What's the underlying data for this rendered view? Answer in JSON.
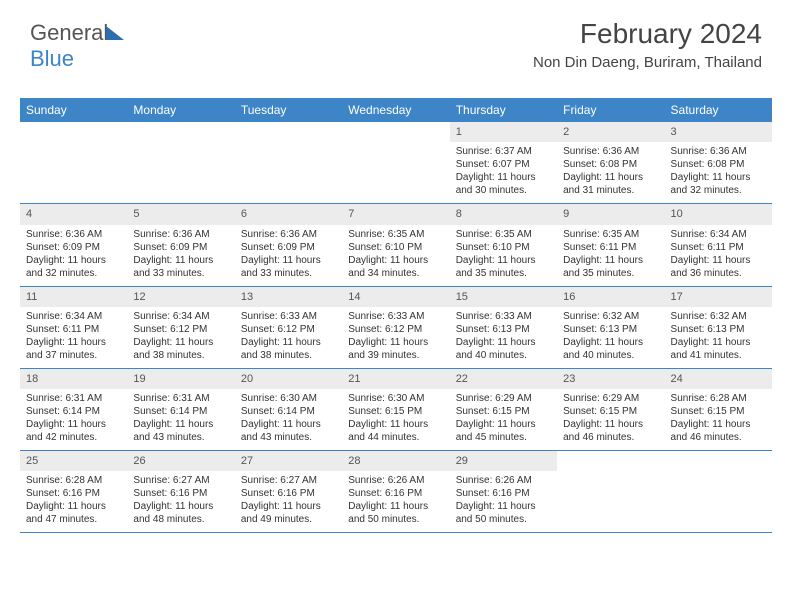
{
  "logo": {
    "text1": "General",
    "text2": "Blue"
  },
  "header": {
    "month": "February 2024",
    "location": "Non Din Daeng, Buriram, Thailand"
  },
  "colors": {
    "brand": "#3d85c6",
    "daynum_bg": "#ececec",
    "text": "#333333"
  },
  "weekdays": [
    "Sunday",
    "Monday",
    "Tuesday",
    "Wednesday",
    "Thursday",
    "Friday",
    "Saturday"
  ],
  "calendar": {
    "type": "table",
    "weeks": [
      [
        {
          "n": "",
          "sr": "",
          "ss": "",
          "dl": ""
        },
        {
          "n": "",
          "sr": "",
          "ss": "",
          "dl": ""
        },
        {
          "n": "",
          "sr": "",
          "ss": "",
          "dl": ""
        },
        {
          "n": "",
          "sr": "",
          "ss": "",
          "dl": ""
        },
        {
          "n": "1",
          "sr": "Sunrise: 6:37 AM",
          "ss": "Sunset: 6:07 PM",
          "dl": "Daylight: 11 hours and 30 minutes."
        },
        {
          "n": "2",
          "sr": "Sunrise: 6:36 AM",
          "ss": "Sunset: 6:08 PM",
          "dl": "Daylight: 11 hours and 31 minutes."
        },
        {
          "n": "3",
          "sr": "Sunrise: 6:36 AM",
          "ss": "Sunset: 6:08 PM",
          "dl": "Daylight: 11 hours and 32 minutes."
        }
      ],
      [
        {
          "n": "4",
          "sr": "Sunrise: 6:36 AM",
          "ss": "Sunset: 6:09 PM",
          "dl": "Daylight: 11 hours and 32 minutes."
        },
        {
          "n": "5",
          "sr": "Sunrise: 6:36 AM",
          "ss": "Sunset: 6:09 PM",
          "dl": "Daylight: 11 hours and 33 minutes."
        },
        {
          "n": "6",
          "sr": "Sunrise: 6:36 AM",
          "ss": "Sunset: 6:09 PM",
          "dl": "Daylight: 11 hours and 33 minutes."
        },
        {
          "n": "7",
          "sr": "Sunrise: 6:35 AM",
          "ss": "Sunset: 6:10 PM",
          "dl": "Daylight: 11 hours and 34 minutes."
        },
        {
          "n": "8",
          "sr": "Sunrise: 6:35 AM",
          "ss": "Sunset: 6:10 PM",
          "dl": "Daylight: 11 hours and 35 minutes."
        },
        {
          "n": "9",
          "sr": "Sunrise: 6:35 AM",
          "ss": "Sunset: 6:11 PM",
          "dl": "Daylight: 11 hours and 35 minutes."
        },
        {
          "n": "10",
          "sr": "Sunrise: 6:34 AM",
          "ss": "Sunset: 6:11 PM",
          "dl": "Daylight: 11 hours and 36 minutes."
        }
      ],
      [
        {
          "n": "11",
          "sr": "Sunrise: 6:34 AM",
          "ss": "Sunset: 6:11 PM",
          "dl": "Daylight: 11 hours and 37 minutes."
        },
        {
          "n": "12",
          "sr": "Sunrise: 6:34 AM",
          "ss": "Sunset: 6:12 PM",
          "dl": "Daylight: 11 hours and 38 minutes."
        },
        {
          "n": "13",
          "sr": "Sunrise: 6:33 AM",
          "ss": "Sunset: 6:12 PM",
          "dl": "Daylight: 11 hours and 38 minutes."
        },
        {
          "n": "14",
          "sr": "Sunrise: 6:33 AM",
          "ss": "Sunset: 6:12 PM",
          "dl": "Daylight: 11 hours and 39 minutes."
        },
        {
          "n": "15",
          "sr": "Sunrise: 6:33 AM",
          "ss": "Sunset: 6:13 PM",
          "dl": "Daylight: 11 hours and 40 minutes."
        },
        {
          "n": "16",
          "sr": "Sunrise: 6:32 AM",
          "ss": "Sunset: 6:13 PM",
          "dl": "Daylight: 11 hours and 40 minutes."
        },
        {
          "n": "17",
          "sr": "Sunrise: 6:32 AM",
          "ss": "Sunset: 6:13 PM",
          "dl": "Daylight: 11 hours and 41 minutes."
        }
      ],
      [
        {
          "n": "18",
          "sr": "Sunrise: 6:31 AM",
          "ss": "Sunset: 6:14 PM",
          "dl": "Daylight: 11 hours and 42 minutes."
        },
        {
          "n": "19",
          "sr": "Sunrise: 6:31 AM",
          "ss": "Sunset: 6:14 PM",
          "dl": "Daylight: 11 hours and 43 minutes."
        },
        {
          "n": "20",
          "sr": "Sunrise: 6:30 AM",
          "ss": "Sunset: 6:14 PM",
          "dl": "Daylight: 11 hours and 43 minutes."
        },
        {
          "n": "21",
          "sr": "Sunrise: 6:30 AM",
          "ss": "Sunset: 6:15 PM",
          "dl": "Daylight: 11 hours and 44 minutes."
        },
        {
          "n": "22",
          "sr": "Sunrise: 6:29 AM",
          "ss": "Sunset: 6:15 PM",
          "dl": "Daylight: 11 hours and 45 minutes."
        },
        {
          "n": "23",
          "sr": "Sunrise: 6:29 AM",
          "ss": "Sunset: 6:15 PM",
          "dl": "Daylight: 11 hours and 46 minutes."
        },
        {
          "n": "24",
          "sr": "Sunrise: 6:28 AM",
          "ss": "Sunset: 6:15 PM",
          "dl": "Daylight: 11 hours and 46 minutes."
        }
      ],
      [
        {
          "n": "25",
          "sr": "Sunrise: 6:28 AM",
          "ss": "Sunset: 6:16 PM",
          "dl": "Daylight: 11 hours and 47 minutes."
        },
        {
          "n": "26",
          "sr": "Sunrise: 6:27 AM",
          "ss": "Sunset: 6:16 PM",
          "dl": "Daylight: 11 hours and 48 minutes."
        },
        {
          "n": "27",
          "sr": "Sunrise: 6:27 AM",
          "ss": "Sunset: 6:16 PM",
          "dl": "Daylight: 11 hours and 49 minutes."
        },
        {
          "n": "28",
          "sr": "Sunrise: 6:26 AM",
          "ss": "Sunset: 6:16 PM",
          "dl": "Daylight: 11 hours and 50 minutes."
        },
        {
          "n": "29",
          "sr": "Sunrise: 6:26 AM",
          "ss": "Sunset: 6:16 PM",
          "dl": "Daylight: 11 hours and 50 minutes."
        },
        {
          "n": "",
          "sr": "",
          "ss": "",
          "dl": ""
        },
        {
          "n": "",
          "sr": "",
          "ss": "",
          "dl": ""
        }
      ]
    ]
  }
}
